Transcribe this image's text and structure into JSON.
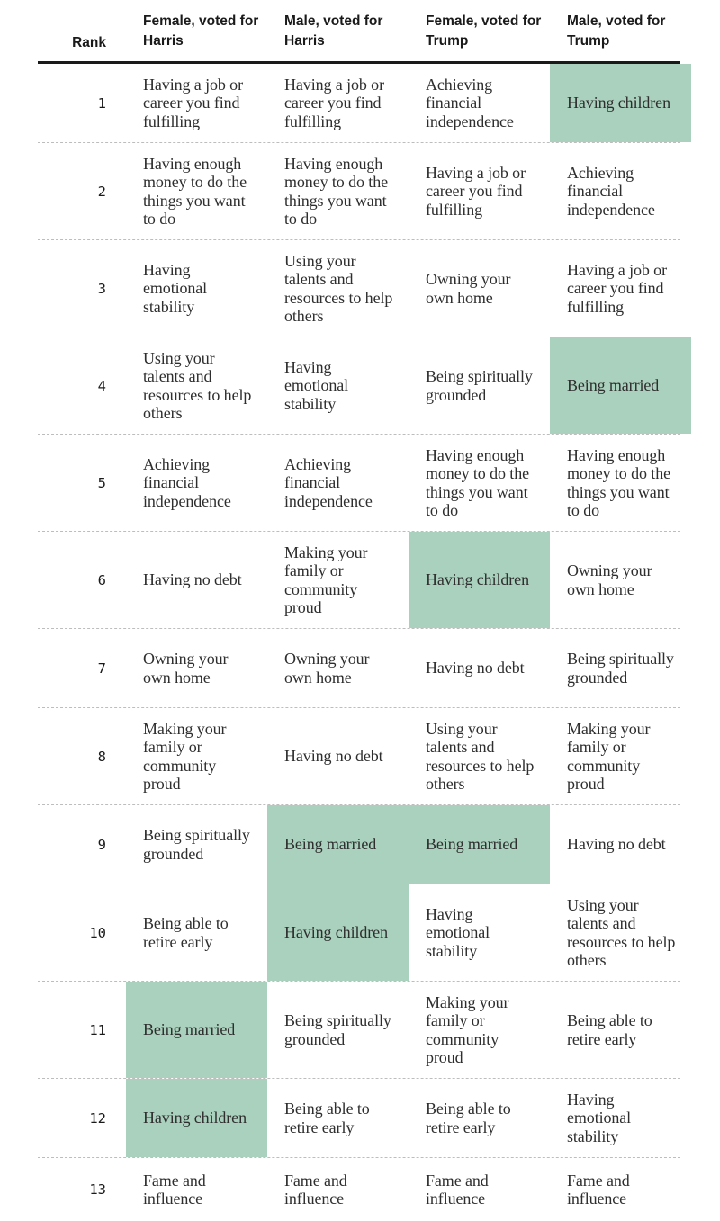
{
  "chart_data": {
    "type": "table",
    "highlight_color": "#aad1bd",
    "columns": [
      {
        "label": "Rank"
      },
      {
        "label": "Female, voted for Harris"
      },
      {
        "label": "Male, voted for Harris"
      },
      {
        "label": "Female, voted for Trump"
      },
      {
        "label": "Male, voted for Trump"
      }
    ],
    "rows": [
      {
        "rank": "1",
        "cells": [
          {
            "text": "Having a job or career you find fulfilling",
            "highlight": false
          },
          {
            "text": "Having a job or career you find fulfilling",
            "highlight": false
          },
          {
            "text": "Achieving financial independence",
            "highlight": false
          },
          {
            "text": "Having children",
            "highlight": true
          }
        ]
      },
      {
        "rank": "2",
        "cells": [
          {
            "text": "Having enough money to do the things you want to do",
            "highlight": false
          },
          {
            "text": "Having enough money to do the things you want to do",
            "highlight": false
          },
          {
            "text": "Having a job or career you find fulfilling",
            "highlight": false
          },
          {
            "text": "Achieving financial independence",
            "highlight": false
          }
        ]
      },
      {
        "rank": "3",
        "cells": [
          {
            "text": "Having emotional stability",
            "highlight": false
          },
          {
            "text": "Using your talents and resources to help others",
            "highlight": false
          },
          {
            "text": "Owning your own home",
            "highlight": false
          },
          {
            "text": "Having a job or career you find fulfilling",
            "highlight": false
          }
        ]
      },
      {
        "rank": "4",
        "cells": [
          {
            "text": "Using your talents and resources to help others",
            "highlight": false
          },
          {
            "text": "Having emotional stability",
            "highlight": false
          },
          {
            "text": "Being spiritually grounded",
            "highlight": false
          },
          {
            "text": "Being married",
            "highlight": true
          }
        ]
      },
      {
        "rank": "5",
        "cells": [
          {
            "text": "Achieving financial independence",
            "highlight": false
          },
          {
            "text": "Achieving financial independence",
            "highlight": false
          },
          {
            "text": "Having enough money to do the things you want to do",
            "highlight": false
          },
          {
            "text": "Having enough money to do the things you want to do",
            "highlight": false
          }
        ]
      },
      {
        "rank": "6",
        "cells": [
          {
            "text": "Having no debt",
            "highlight": false
          },
          {
            "text": "Making your family or community proud",
            "highlight": false
          },
          {
            "text": "Having children",
            "highlight": true
          },
          {
            "text": "Owning your own home",
            "highlight": false
          }
        ]
      },
      {
        "rank": "7",
        "cells": [
          {
            "text": "Owning your own home",
            "highlight": false
          },
          {
            "text": "Owning your own home",
            "highlight": false
          },
          {
            "text": "Having no debt",
            "highlight": false
          },
          {
            "text": "Being spiritually grounded",
            "highlight": false
          }
        ]
      },
      {
        "rank": "8",
        "cells": [
          {
            "text": "Making your family or community proud",
            "highlight": false
          },
          {
            "text": "Having no debt",
            "highlight": false
          },
          {
            "text": "Using your talents and resources to help others",
            "highlight": false
          },
          {
            "text": "Making your family or community proud",
            "highlight": false
          }
        ]
      },
      {
        "rank": "9",
        "cells": [
          {
            "text": "Being spiritually grounded",
            "highlight": false
          },
          {
            "text": "Being married",
            "highlight": true
          },
          {
            "text": "Being married",
            "highlight": true
          },
          {
            "text": "Having no debt",
            "highlight": false
          }
        ]
      },
      {
        "rank": "10",
        "cells": [
          {
            "text": "Being able to retire early",
            "highlight": false
          },
          {
            "text": "Having children",
            "highlight": true
          },
          {
            "text": "Having emotional stability",
            "highlight": false
          },
          {
            "text": "Using your talents and resources to help others",
            "highlight": false
          }
        ]
      },
      {
        "rank": "11",
        "cells": [
          {
            "text": "Being married",
            "highlight": true
          },
          {
            "text": "Being spiritually grounded",
            "highlight": false
          },
          {
            "text": "Making your family or community proud",
            "highlight": false
          },
          {
            "text": "Being able to retire early",
            "highlight": false
          }
        ]
      },
      {
        "rank": "12",
        "cells": [
          {
            "text": "Having children",
            "highlight": true
          },
          {
            "text": "Being able to retire early",
            "highlight": false
          },
          {
            "text": "Being able to retire early",
            "highlight": false
          },
          {
            "text": "Having emotional stability",
            "highlight": false
          }
        ]
      },
      {
        "rank": "13",
        "cells": [
          {
            "text": "Fame and influence",
            "highlight": false
          },
          {
            "text": "Fame and influence",
            "highlight": false
          },
          {
            "text": "Fame and influence",
            "highlight": false
          },
          {
            "text": "Fame and influence",
            "highlight": false
          }
        ]
      }
    ]
  }
}
